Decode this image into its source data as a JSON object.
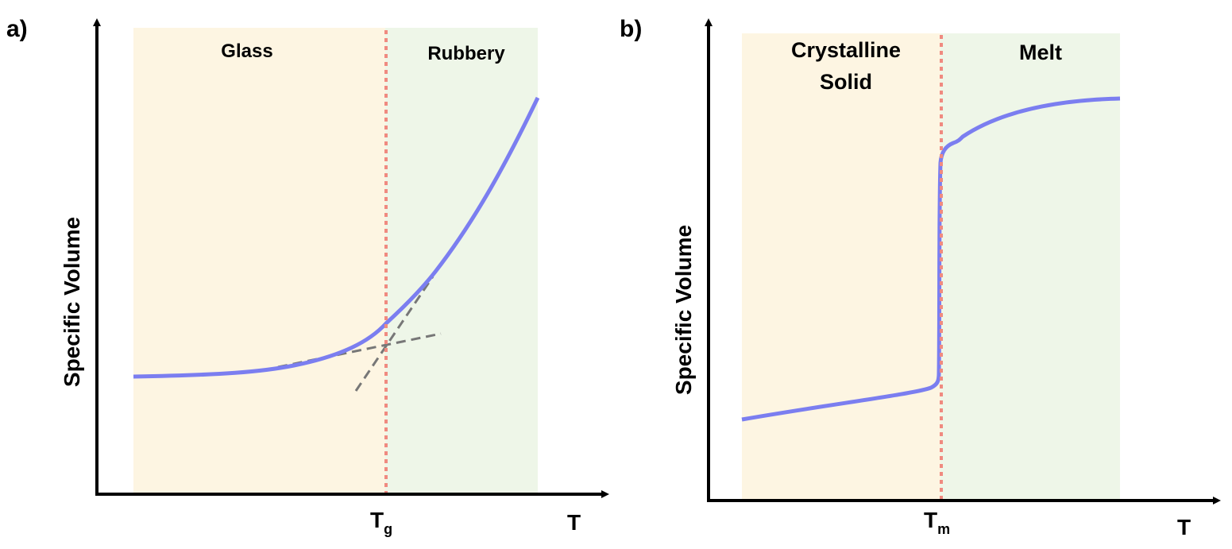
{
  "colors": {
    "glassy_region": "#fdf5e2",
    "rubbery_region": "#eef6e8",
    "curve": "#7b7ef0",
    "transition_line": "#f08a80",
    "tangent_lines": "#777777",
    "axes": "#000000"
  },
  "panel_a": {
    "label": "a)",
    "y_axis_label": "Specific Volume",
    "x_axis_label": "T",
    "transition_label_main": "T",
    "transition_label_sub": "g",
    "region_left": "Glass",
    "region_right": "Rubbery"
  },
  "panel_b": {
    "label": "b)",
    "y_axis_label": "Specific Volume",
    "x_axis_label": "T",
    "transition_label_main": "T",
    "transition_label_sub": "m",
    "region_left_line1": "Crystalline",
    "region_left_line2": "Solid",
    "region_right": "Melt"
  }
}
